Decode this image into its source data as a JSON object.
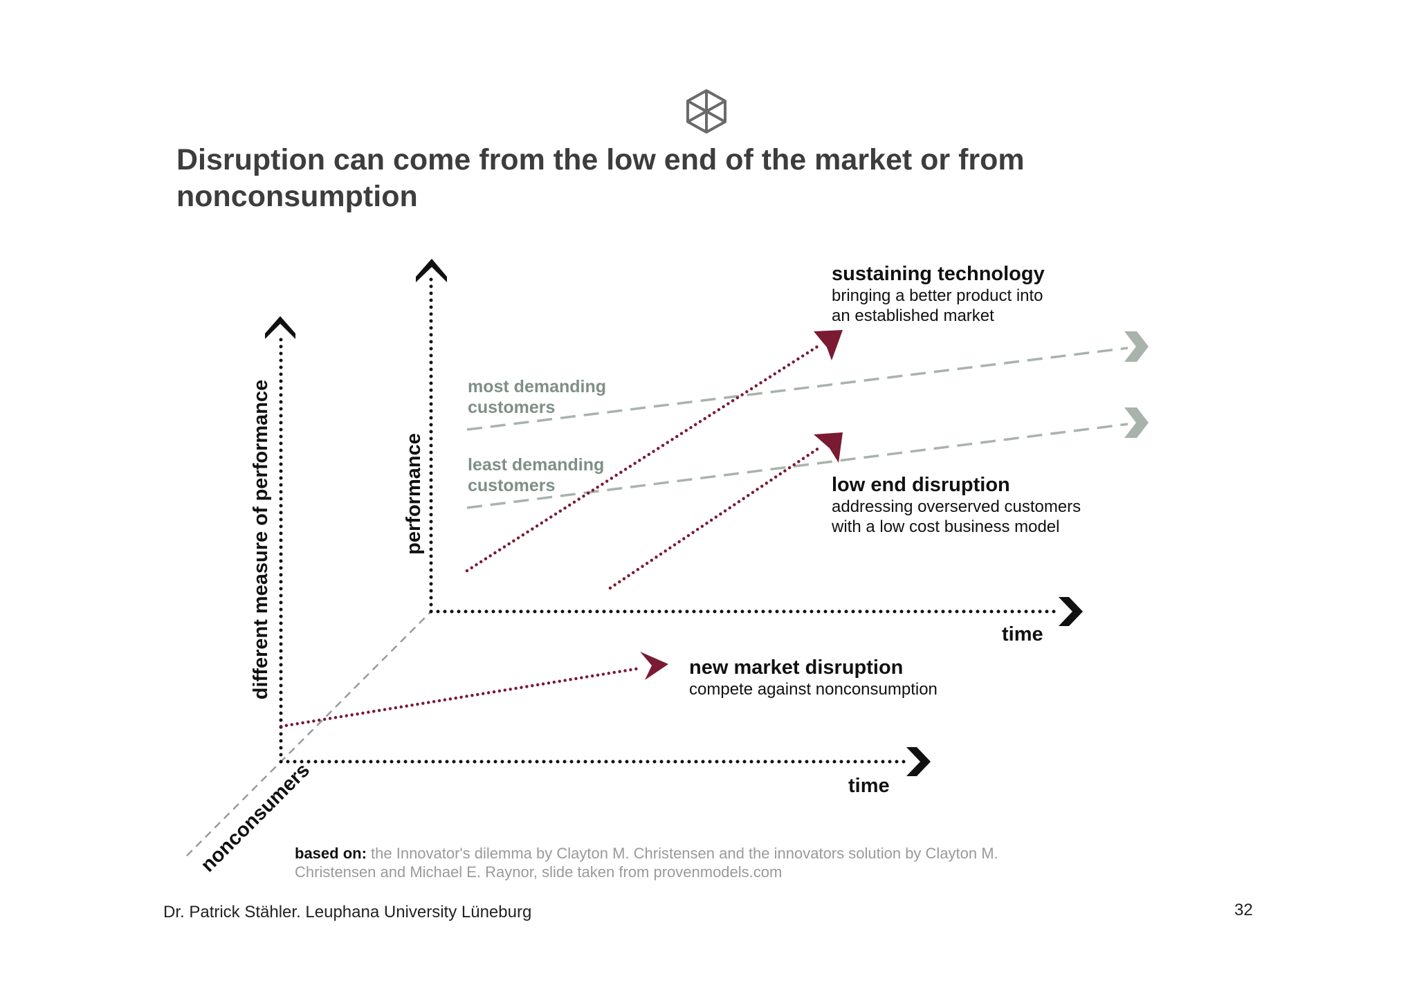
{
  "slide": {
    "title": "Disruption can come from the low end of the market or from nonconsumption",
    "logo_icon": "cube-icon",
    "footer": {
      "based_on_label": "based on:",
      "source_text": "the Innovator's dilemma by Clayton M. Christensen and the innovators solution by Clayton M. Christensen and Michael E. Raynor, slide taken from provenmodels.com"
    },
    "author": "Dr. Patrick Stähler. Leuphana University Lüneburg",
    "page_number": "32"
  },
  "diagram": {
    "axes": {
      "front_y_label": "different measure of performance",
      "front_x_label": "time",
      "back_y_label": "performance",
      "back_x_label": "time",
      "depth_label": "nonconsumers"
    },
    "bands": [
      {
        "label_line1": "most demanding",
        "label_line2": "customers"
      },
      {
        "label_line1": "least demanding",
        "label_line2": "customers"
      }
    ],
    "annotations": {
      "sustaining": {
        "title": "sustaining technology",
        "line1": "bringing a better product into",
        "line2": "an established market"
      },
      "low_end": {
        "title": "low end disruption",
        "line1": "addressing overserved customers",
        "line2": "with a low cost business model"
      },
      "new_market": {
        "title": "new market disruption",
        "line1": "compete against nonconsumption"
      }
    },
    "colors": {
      "axis": "#111111",
      "disruption_arrow": "#7a1a33",
      "band": "#a8b3ab",
      "guide": "#9a9a9a",
      "title": "#3d3d3d"
    }
  }
}
